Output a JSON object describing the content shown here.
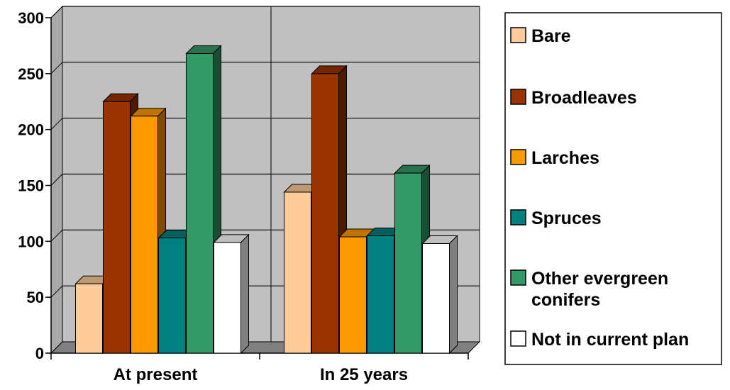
{
  "chart_data": {
    "type": "bar",
    "title": "",
    "xlabel": "",
    "ylabel": "",
    "categories": [
      "At present",
      "In 25 years"
    ],
    "series": [
      {
        "name": "Bare",
        "values": [
          62,
          144
        ],
        "color": "#ffcc99"
      },
      {
        "name": "Broadleaves",
        "values": [
          225,
          250
        ],
        "color": "#993300"
      },
      {
        "name": "Larches",
        "values": [
          212,
          104
        ],
        "color": "#ff9900"
      },
      {
        "name": "Spruces",
        "values": [
          103,
          105
        ],
        "color": "#008080"
      },
      {
        "name": "Other evergreen conifers",
        "values": [
          268,
          161
        ],
        "color": "#339966"
      },
      {
        "name": "Not in current plan",
        "values": [
          99,
          98
        ],
        "color": "#ffffff"
      }
    ],
    "legend_lines": [
      [
        "Bare"
      ],
      [
        "Broadleaves"
      ],
      [
        "Larches"
      ],
      [
        "Spruces"
      ],
      [
        "Other evergreen",
        "conifers"
      ],
      [
        "Not in current plan"
      ]
    ],
    "ylim": [
      0,
      300
    ],
    "yticks": [
      0,
      50,
      100,
      150,
      200,
      250,
      300
    ],
    "grid": true,
    "legend_position": "right",
    "wall_color": "#c0c0c0",
    "floor_color": "#808080"
  }
}
